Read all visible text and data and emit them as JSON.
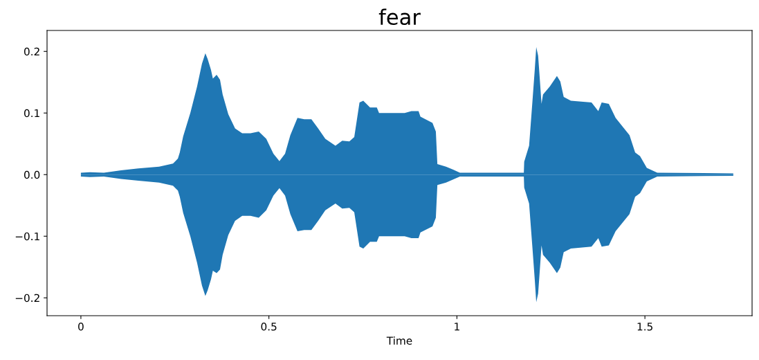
{
  "chart_data": {
    "type": "area",
    "title": "fear",
    "xlabel": "Time",
    "x": [
      0.0,
      0.024,
      0.061,
      0.107,
      0.153,
      0.208,
      0.245,
      0.258,
      0.263,
      0.272,
      0.291,
      0.309,
      0.322,
      0.331,
      0.337,
      0.346,
      0.351,
      0.361,
      0.37,
      0.377,
      0.392,
      0.41,
      0.429,
      0.451,
      0.473,
      0.493,
      0.512,
      0.528,
      0.543,
      0.557,
      0.576,
      0.594,
      0.613,
      0.631,
      0.65,
      0.677,
      0.695,
      0.714,
      0.727,
      0.741,
      0.751,
      0.769,
      0.787,
      0.793,
      0.833,
      0.861,
      0.879,
      0.898,
      0.903,
      0.935,
      0.944,
      0.948,
      0.971,
      0.99,
      1.008,
      1.178,
      1.179,
      1.192,
      1.201,
      1.207,
      1.211,
      1.216,
      1.22,
      1.225,
      1.229,
      1.247,
      1.266,
      1.275,
      1.284,
      1.303,
      1.358,
      1.376,
      1.385,
      1.404,
      1.422,
      1.459,
      1.474,
      1.487,
      1.505,
      1.533,
      1.735
    ],
    "series": [
      {
        "color": "#1f77b4",
        "values": [
          0.003,
          0.004,
          0.003,
          0.007,
          0.01,
          0.013,
          0.018,
          0.026,
          0.036,
          0.062,
          0.1,
          0.143,
          0.18,
          0.197,
          0.188,
          0.17,
          0.156,
          0.162,
          0.154,
          0.13,
          0.098,
          0.075,
          0.067,
          0.067,
          0.07,
          0.058,
          0.034,
          0.022,
          0.034,
          0.064,
          0.092,
          0.09,
          0.09,
          0.075,
          0.058,
          0.047,
          0.055,
          0.054,
          0.061,
          0.117,
          0.12,
          0.109,
          0.109,
          0.1,
          0.1,
          0.1,
          0.103,
          0.103,
          0.094,
          0.084,
          0.07,
          0.017,
          0.013,
          0.008,
          0.003,
          0.003,
          0.021,
          0.047,
          0.12,
          0.17,
          0.207,
          0.193,
          0.159,
          0.115,
          0.13,
          0.143,
          0.16,
          0.151,
          0.126,
          0.12,
          0.117,
          0.103,
          0.117,
          0.115,
          0.092,
          0.064,
          0.036,
          0.03,
          0.011,
          0.003,
          0.002
        ]
      },
      {
        "color": "#1f77b4",
        "values": [
          -0.003,
          -0.004,
          -0.003,
          -0.007,
          -0.01,
          -0.013,
          -0.018,
          -0.026,
          -0.036,
          -0.062,
          -0.1,
          -0.143,
          -0.18,
          -0.197,
          -0.188,
          -0.17,
          -0.156,
          -0.16,
          -0.154,
          -0.13,
          -0.098,
          -0.075,
          -0.067,
          -0.067,
          -0.07,
          -0.058,
          -0.034,
          -0.022,
          -0.034,
          -0.064,
          -0.092,
          -0.09,
          -0.09,
          -0.075,
          -0.058,
          -0.047,
          -0.055,
          -0.054,
          -0.061,
          -0.117,
          -0.12,
          -0.109,
          -0.109,
          -0.1,
          -0.1,
          -0.1,
          -0.103,
          -0.103,
          -0.094,
          -0.084,
          -0.07,
          -0.017,
          -0.013,
          -0.008,
          -0.003,
          -0.003,
          -0.021,
          -0.047,
          -0.12,
          -0.17,
          -0.207,
          -0.193,
          -0.159,
          -0.115,
          -0.13,
          -0.143,
          -0.16,
          -0.151,
          -0.126,
          -0.12,
          -0.117,
          -0.103,
          -0.117,
          -0.115,
          -0.092,
          -0.064,
          -0.036,
          -0.03,
          -0.011,
          -0.003,
          -0.002
        ]
      }
    ],
    "xlim": [
      -0.09,
      1.785
    ],
    "ylim": [
      -0.229,
      0.234
    ],
    "xticks": [
      0,
      0.5,
      1,
      1.5
    ],
    "yticks": [
      {
        "value": -0.2,
        "label": "−0.2"
      },
      {
        "value": -0.1,
        "label": "−0.1"
      },
      {
        "value": 0,
        "label": "0.0"
      },
      0.1,
      0.2
    ]
  }
}
